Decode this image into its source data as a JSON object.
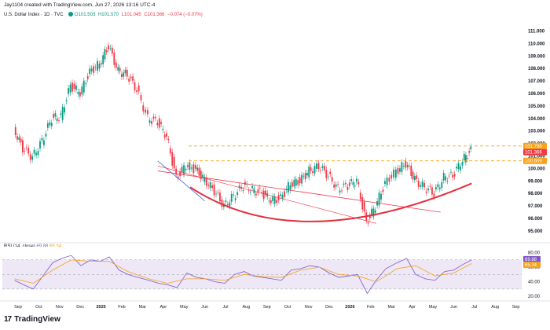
{
  "header": {
    "credit": "Jay1104 created with TradingView.com, Jun 27, 2026 13:16 UTC-4",
    "symbol": "U.S. Dollar Index · 1D · TVC",
    "open": "O101.503",
    "high": "H101.570",
    "low": "L101.045",
    "close": "C101.366",
    "change": "−0.074 (−0.07%)"
  },
  "rsi_legend": {
    "label": "RSI (14, close)",
    "value": "69.88",
    "ma_value": "65.34"
  },
  "logo": {
    "text": "TradingView"
  },
  "colors": {
    "up": "#089981",
    "down": "#f23645",
    "orange_level": "#f7a21b",
    "rsi_line": "#7e57c2",
    "rsi_band": "#ede7f6",
    "arc": "#e4303c",
    "channel": "#3b6de0"
  },
  "chart_data": [
    {
      "type": "line",
      "title": "U.S. Dollar Index · 1D · TVC",
      "representation": "daily candlesticks",
      "x_tick_labels": [
        "Sep",
        "Oct",
        "Nov",
        "Dec",
        "2025",
        "Feb",
        "Mar",
        "Apr",
        "May",
        "Jun",
        "Jul",
        "Aug",
        "Sep",
        "Oct",
        "Nov",
        "Dec",
        "2026",
        "Feb",
        "Mar",
        "Apr",
        "May",
        "Jun",
        "Jul",
        "Aug",
        "Sep"
      ],
      "y_ticks": [
        95.0,
        96.0,
        97.0,
        98.0,
        99.0,
        100.0,
        101.0,
        102.0,
        103.0,
        104.0,
        105.0,
        106.0,
        107.0,
        108.0,
        109.0,
        110.0,
        111.0
      ],
      "ylim": [
        94.3,
        111.6
      ],
      "price_labels": [
        {
          "value": "101.798",
          "color": "#f7a21b"
        },
        {
          "value": "101.366",
          "color": "#f23645"
        },
        {
          "value": "100.609",
          "color": "#f7a21b"
        }
      ],
      "series": [
        {
          "name": "U.S. Dollar Index",
          "x": [
            "Aug 26",
            "Sep 9",
            "Sep 23",
            "Oct 7",
            "Oct 21",
            "Nov 4",
            "Nov 18",
            "Dec 2",
            "Dec 16",
            "Dec 30",
            "Jan 13",
            "Jan 27",
            "Feb 10",
            "Feb 24",
            "Mar 10",
            "Mar 24",
            "Apr 7",
            "Apr 21",
            "May 5",
            "May 19",
            "Jun 2",
            "Jun 16",
            "Jun 30",
            "Jul 14",
            "Jul 28",
            "Aug 11",
            "Aug 25",
            "Sep 8",
            "Sep 22",
            "Oct 6",
            "Oct 20",
            "Nov 3",
            "Nov 17",
            "Dec 1",
            "Dec 15",
            "Dec 29",
            "Jan 12",
            "Jan 26",
            "Feb 9",
            "Feb 23",
            "Mar 9",
            "Mar 23",
            "Apr 6",
            "Apr 20",
            "May 4",
            "May 18",
            "Jun 1",
            "Jun 15",
            "Jun 27"
          ],
          "values": [
            103.2,
            101.6,
            100.9,
            102.2,
            104.0,
            104.2,
            106.6,
            106.1,
            107.7,
            108.4,
            109.8,
            107.8,
            107.5,
            106.3,
            104.0,
            103.7,
            102.6,
            99.2,
            100.3,
            99.9,
            99.1,
            98.2,
            97.0,
            97.8,
            98.6,
            98.3,
            98.0,
            97.5,
            97.6,
            98.8,
            99.0,
            99.8,
            100.2,
            99.4,
            98.4,
            98.6,
            99.1,
            95.6,
            97.0,
            98.8,
            99.8,
            100.4,
            99.1,
            98.5,
            98.0,
            99.3,
            99.4,
            100.7,
            101.4
          ]
        }
      ],
      "levels": [
        101.798,
        100.609
      ],
      "arc": {
        "x": [
          "May 10",
          "Oct 15",
          "Jun 27"
        ],
        "values": [
          98.5,
          95.5,
          98.8
        ]
      }
    },
    {
      "type": "line",
      "title": "RSI (14, close)",
      "y_ticks": [
        20.0,
        40.0,
        60.0,
        80.0
      ],
      "ylim": [
        17,
        88
      ],
      "band": [
        30,
        70
      ],
      "price_labels": [
        {
          "value": "69.88",
          "color": "#7e57c2"
        },
        {
          "value": "65.34",
          "color": "#f7a21b"
        }
      ],
      "series": [
        {
          "name": "RSI",
          "x": [
            "Aug 26",
            "Sep 9",
            "Sep 23",
            "Oct 7",
            "Oct 21",
            "Nov 4",
            "Nov 18",
            "Dec 2",
            "Dec 16",
            "Dec 30",
            "Jan 13",
            "Jan 27",
            "Feb 10",
            "Feb 24",
            "Mar 10",
            "Mar 24",
            "Apr 7",
            "Apr 21",
            "May 5",
            "May 19",
            "Jun 2",
            "Jun 16",
            "Jun 30",
            "Jul 14",
            "Jul 28",
            "Aug 11",
            "Aug 25",
            "Sep 8",
            "Sep 22",
            "Oct 6",
            "Oct 20",
            "Nov 3",
            "Nov 17",
            "Dec 1",
            "Dec 15",
            "Dec 29",
            "Jan 12",
            "Jan 26",
            "Feb 9",
            "Feb 23",
            "Mar 9",
            "Mar 23",
            "Apr 6",
            "Apr 20",
            "May 4",
            "May 18",
            "Jun 1",
            "Jun 15",
            "Jun 27"
          ],
          "values": [
            42,
            36,
            30,
            48,
            66,
            72,
            76,
            62,
            70,
            68,
            74,
            56,
            50,
            46,
            42,
            38,
            36,
            32,
            52,
            46,
            44,
            40,
            38,
            50,
            54,
            48,
            46,
            44,
            42,
            56,
            58,
            62,
            60,
            52,
            46,
            48,
            50,
            24,
            42,
            58,
            66,
            72,
            50,
            44,
            42,
            54,
            56,
            64,
            70
          ]
        },
        {
          "name": "RSI MA",
          "x": [
            "Aug 26",
            "Sep 23",
            "Oct 21",
            "Nov 18",
            "Dec 16",
            "Jan 13",
            "Feb 10",
            "Mar 10",
            "Apr 7",
            "May 5",
            "Jun 2",
            "Jun 30",
            "Jul 28",
            "Aug 25",
            "Sep 22",
            "Oct 20",
            "Nov 17",
            "Dec 15",
            "Jan 12",
            "Feb 9",
            "Mar 9",
            "Apr 6",
            "May 4",
            "Jun 1",
            "Jun 27"
          ],
          "values": [
            44,
            38,
            56,
            70,
            68,
            68,
            54,
            44,
            38,
            44,
            44,
            42,
            50,
            47,
            46,
            56,
            60,
            50,
            48,
            40,
            58,
            62,
            48,
            52,
            65
          ]
        }
      ]
    }
  ]
}
